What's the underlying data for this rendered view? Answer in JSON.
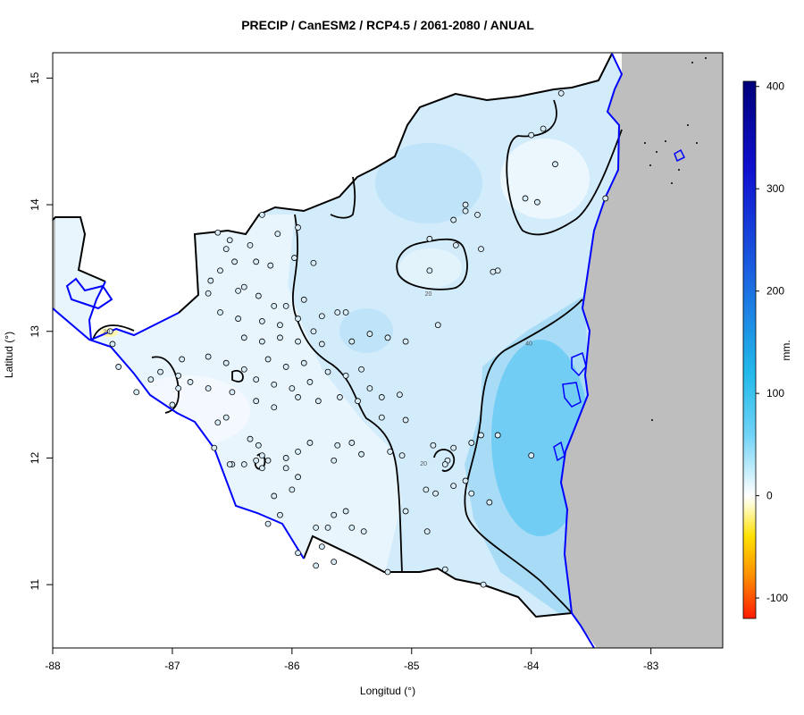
{
  "title": "PRECIP / CanESM2 / RCP4.5 / 2061-2080 / ANUAL",
  "xlabel": "Longitud (°)",
  "ylabel": "Latitud (°)",
  "colorbar": {
    "unit": "mm.",
    "range": [
      -120,
      405
    ],
    "ticks": [
      "400",
      "300",
      "200",
      "100",
      "0",
      "-100"
    ],
    "tick_values": [
      400,
      300,
      200,
      100,
      0,
      -100
    ],
    "stops": [
      {
        "v": -120,
        "c": "#ff1a00"
      },
      {
        "v": -80,
        "c": "#ff8a00"
      },
      {
        "v": -40,
        "c": "#ffe000"
      },
      {
        "v": -10,
        "c": "#fffbc8"
      },
      {
        "v": 0,
        "c": "#ffffff"
      },
      {
        "v": 60,
        "c": "#6fd3f6"
      },
      {
        "v": 120,
        "c": "#22b9ea"
      },
      {
        "v": 220,
        "c": "#1a5fe0"
      },
      {
        "v": 320,
        "c": "#1010d0"
      },
      {
        "v": 405,
        "c": "#00007a"
      }
    ]
  },
  "chart_data": {
    "type": "heatmap",
    "title": "PRECIP / CanESM2 / RCP4.5 / 2061-2080 / ANUAL",
    "xlabel": "Longitud (°)",
    "ylabel": "Latitud (°)",
    "xlim": [
      -88,
      -82.4
    ],
    "ylim": [
      10.5,
      15.2
    ],
    "x_ticks": [
      "-88",
      "-87",
      "-86",
      "-85",
      "-84",
      "-83"
    ],
    "x_tick_values": [
      -88,
      -87,
      -86,
      -85,
      -84,
      -83
    ],
    "y_ticks": [
      "15",
      "14",
      "13",
      "12",
      "11"
    ],
    "y_tick_values": [
      15,
      14,
      13,
      12,
      11
    ],
    "contour_labels": [
      {
        "text": "20",
        "lon": -87.55,
        "lat": 13.0
      },
      {
        "text": "20",
        "lon": -84.86,
        "lat": 13.3
      },
      {
        "text": "40",
        "lon": -84.02,
        "lat": 12.91
      },
      {
        "text": "20",
        "lon": -84.9,
        "lat": 11.96
      }
    ],
    "colors": {
      "land_outside": "#bebebe",
      "ocean": "#ffffff",
      "coast_line": "#0000ff",
      "border_line": "#000000"
    }
  }
}
